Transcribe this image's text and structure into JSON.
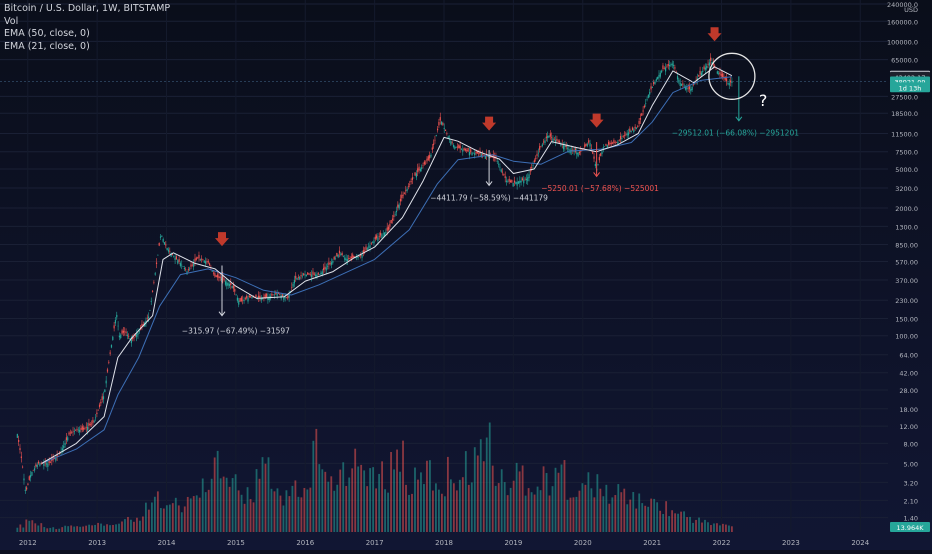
{
  "legend": {
    "title": "Bitcoin / U.S. Dollar, 1W, BITSTAMP",
    "vol": "Vol",
    "ema50": "EMA (50, close, 0)",
    "ema21": "EMA (21, close, 0)"
  },
  "colors": {
    "background": "#0c1020",
    "up": "#26a69a",
    "down": "#ef5350",
    "ema50": "#3d6fb6",
    "ema21": "#e0e3eb",
    "arrow": "#c0392b",
    "annotation_white": "#d1d4dc",
    "annotation_red": "#ef5350",
    "annotation_teal": "#26a69a"
  },
  "chart_data": {
    "type": "candlestick",
    "scale": "log",
    "ylim": [
      1,
      240000
    ],
    "xlim": [
      2011.6,
      2024.4
    ],
    "currency_label": "USD",
    "x_ticks": [
      "2012",
      "2013",
      "2014",
      "2015",
      "2016",
      "2017",
      "2018",
      "2019",
      "2020",
      "2021",
      "2022",
      "2023",
      "2024"
    ],
    "y_ticks": [
      "240000.0",
      "160000.0",
      "100000.0",
      "65000.0",
      "27500.0",
      "18500.0",
      "11500.0",
      "7500.0",
      "5000.0",
      "3200.0",
      "2000.0",
      "1300.0",
      "850.00",
      "570.00",
      "370.00",
      "230.00",
      "150.00",
      "100.00",
      "64.00",
      "42.00",
      "28.00",
      "18.00",
      "12.00",
      "8.00",
      "5.00",
      "3.20",
      "2.10",
      "1.40"
    ],
    "price_badges": [
      {
        "text": "44579.69",
        "value": 44579.69,
        "type": "white"
      },
      {
        "text": "43492.17",
        "value": 43492.17,
        "type": "dark"
      },
      {
        "text": "38921.09",
        "value": 38921.09,
        "type": "teal"
      },
      {
        "text": "1d 13h",
        "value": 34000,
        "type": "teal"
      }
    ],
    "volume_badge": "13.964K",
    "current_price_line": 38921.09,
    "price_path": [
      [
        2011.85,
        10
      ],
      [
        2011.92,
        5
      ],
      [
        2011.97,
        2.5
      ],
      [
        2012.05,
        4
      ],
      [
        2012.15,
        5
      ],
      [
        2012.3,
        5
      ],
      [
        2012.45,
        6
      ],
      [
        2012.6,
        10
      ],
      [
        2012.7,
        11
      ],
      [
        2012.8,
        11
      ],
      [
        2012.95,
        13
      ],
      [
        2013.1,
        25
      ],
      [
        2013.2,
        75
      ],
      [
        2013.28,
        170
      ],
      [
        2013.32,
        100
      ],
      [
        2013.4,
        110
      ],
      [
        2013.5,
        90
      ],
      [
        2013.6,
        110
      ],
      [
        2013.75,
        160
      ],
      [
        2013.85,
        500
      ],
      [
        2013.92,
        1100
      ],
      [
        2014.0,
        800
      ],
      [
        2014.1,
        650
      ],
      [
        2014.2,
        550
      ],
      [
        2014.3,
        450
      ],
      [
        2014.45,
        620
      ],
      [
        2014.6,
        560
      ],
      [
        2014.7,
        400
      ],
      [
        2014.8,
        380
      ],
      [
        2014.95,
        320
      ],
      [
        2015.05,
        220
      ],
      [
        2015.2,
        250
      ],
      [
        2015.4,
        240
      ],
      [
        2015.6,
        270
      ],
      [
        2015.75,
        240
      ],
      [
        2015.85,
        380
      ],
      [
        2016.0,
        420
      ],
      [
        2016.2,
        420
      ],
      [
        2016.4,
        580
      ],
      [
        2016.5,
        700
      ],
      [
        2016.6,
        600
      ],
      [
        2016.8,
        650
      ],
      [
        2017.0,
        950
      ],
      [
        2017.2,
        1200
      ],
      [
        2017.4,
        2600
      ],
      [
        2017.6,
        4500
      ],
      [
        2017.8,
        6500
      ],
      [
        2017.95,
        16000
      ],
      [
        2018.05,
        11000
      ],
      [
        2018.15,
        8500
      ],
      [
        2018.35,
        7500
      ],
      [
        2018.55,
        7000
      ],
      [
        2018.75,
        6400
      ],
      [
        2018.9,
        3800
      ],
      [
        2019.0,
        3600
      ],
      [
        2019.2,
        4000
      ],
      [
        2019.4,
        8500
      ],
      [
        2019.5,
        11000
      ],
      [
        2019.6,
        10000
      ],
      [
        2019.8,
        8000
      ],
      [
        2019.95,
        7200
      ],
      [
        2020.1,
        9500
      ],
      [
        2020.2,
        5000
      ],
      [
        2020.3,
        8500
      ],
      [
        2020.5,
        9400
      ],
      [
        2020.65,
        11700
      ],
      [
        2020.8,
        13500
      ],
      [
        2020.95,
        29000
      ],
      [
        2021.05,
        40000
      ],
      [
        2021.15,
        52000
      ],
      [
        2021.3,
        60000
      ],
      [
        2021.4,
        38000
      ],
      [
        2021.55,
        32000
      ],
      [
        2021.7,
        47000
      ],
      [
        2021.85,
        64000
      ],
      [
        2021.95,
        48000
      ],
      [
        2022.05,
        41000
      ],
      [
        2022.1,
        37000
      ],
      [
        2022.15,
        38900
      ]
    ],
    "ema21_path": [
      [
        2012.2,
        5
      ],
      [
        2012.7,
        8
      ],
      [
        2013.1,
        15
      ],
      [
        2013.3,
        60
      ],
      [
        2013.5,
        95
      ],
      [
        2013.8,
        160
      ],
      [
        2013.95,
        600
      ],
      [
        2014.1,
        700
      ],
      [
        2014.4,
        550
      ],
      [
        2014.7,
        480
      ],
      [
        2015.0,
        320
      ],
      [
        2015.3,
        240
      ],
      [
        2015.7,
        250
      ],
      [
        2016.0,
        360
      ],
      [
        2016.4,
        450
      ],
      [
        2016.7,
        620
      ],
      [
        2017.0,
        800
      ],
      [
        2017.4,
        1600
      ],
      [
        2017.7,
        3800
      ],
      [
        2018.0,
        10500
      ],
      [
        2018.2,
        9600
      ],
      [
        2018.5,
        7500
      ],
      [
        2018.8,
        6300
      ],
      [
        2019.0,
        4500
      ],
      [
        2019.3,
        5000
      ],
      [
        2019.55,
        9500
      ],
      [
        2019.9,
        8300
      ],
      [
        2020.2,
        7500
      ],
      [
        2020.5,
        8800
      ],
      [
        2020.8,
        11500
      ],
      [
        2021.0,
        22000
      ],
      [
        2021.3,
        50000
      ],
      [
        2021.6,
        38000
      ],
      [
        2021.9,
        55000
      ],
      [
        2022.15,
        44600
      ]
    ],
    "ema50_path": [
      [
        2012.2,
        5
      ],
      [
        2012.7,
        7
      ],
      [
        2013.1,
        11
      ],
      [
        2013.3,
        25
      ],
      [
        2013.6,
        60
      ],
      [
        2013.9,
        200
      ],
      [
        2014.2,
        420
      ],
      [
        2014.6,
        480
      ],
      [
        2015.0,
        390
      ],
      [
        2015.4,
        290
      ],
      [
        2015.8,
        260
      ],
      [
        2016.2,
        330
      ],
      [
        2016.7,
        480
      ],
      [
        2017.0,
        600
      ],
      [
        2017.5,
        1200
      ],
      [
        2017.9,
        3500
      ],
      [
        2018.2,
        6200
      ],
      [
        2018.7,
        7000
      ],
      [
        2019.0,
        6000
      ],
      [
        2019.4,
        5600
      ],
      [
        2019.8,
        7600
      ],
      [
        2020.3,
        8000
      ],
      [
        2020.7,
        9300
      ],
      [
        2021.0,
        15000
      ],
      [
        2021.3,
        30000
      ],
      [
        2021.7,
        40000
      ],
      [
        2022.15,
        43500
      ]
    ],
    "red_arrows": [
      {
        "x": 2014.8,
        "value": 900
      },
      {
        "x": 2018.65,
        "value": 13500
      },
      {
        "x": 2020.2,
        "value": 14500
      },
      {
        "x": 2021.9,
        "value": 110000
      }
    ],
    "drawdowns": [
      {
        "x": 2014.8,
        "from": 520,
        "to": 160,
        "label": "−315.97 (−67.49%) −31597",
        "color": "annotation_white",
        "label_x": 2015.0,
        "label_value": 105
      },
      {
        "x": 2018.65,
        "from": 7800,
        "to": 3400,
        "label": "−4411.79 (−58.59%) −441179",
        "color": "annotation_white",
        "label_x": 2018.65,
        "label_value": 2400
      },
      {
        "x": 2020.2,
        "from": 9400,
        "to": 4200,
        "label": "−5250.01 (−57.68%) −525001",
        "color": "annotation_red",
        "label_x": 2020.25,
        "label_value": 3000
      },
      {
        "x": 2022.25,
        "from": 44000,
        "to": 15500,
        "label": "−29512.01 (−66.08%) −2951201",
        "color": "annotation_teal",
        "label_x": 2022.2,
        "label_value": 11000
      }
    ],
    "question_mark": {
      "text": "?",
      "x": 2022.6,
      "value": 22000
    },
    "circle": {
      "x": 2022.15,
      "value": 44000
    },
    "volume": [
      0.06,
      0.12,
      0.08,
      0.05,
      0.04,
      0.05,
      0.06,
      0.05,
      0.06,
      0.07,
      0.06,
      0.08,
      0.1,
      0.12,
      0.15,
      0.25,
      0.4,
      0.3,
      0.35,
      0.25,
      0.3,
      0.45,
      0.55,
      0.7,
      0.5,
      0.45,
      0.35,
      0.4,
      0.55,
      0.6,
      0.4,
      0.35,
      0.45,
      0.3,
      0.35,
      0.9,
      0.5,
      0.45,
      0.55,
      0.5,
      0.65,
      0.6,
      0.5,
      0.55,
      0.7,
      0.8,
      0.45,
      0.5,
      0.6,
      0.5,
      0.45,
      0.6,
      0.55,
      0.65,
      0.75,
      0.95,
      0.6,
      0.5,
      0.45,
      0.6,
      0.5,
      0.45,
      0.55,
      0.5,
      0.6,
      0.45,
      0.4,
      0.5,
      0.45,
      0.4,
      0.35,
      0.4,
      0.35,
      0.3,
      0.3,
      0.28,
      0.25,
      0.2,
      0.18,
      0.15,
      0.12,
      0.1,
      0.08,
      0.07,
      0.06
    ]
  }
}
